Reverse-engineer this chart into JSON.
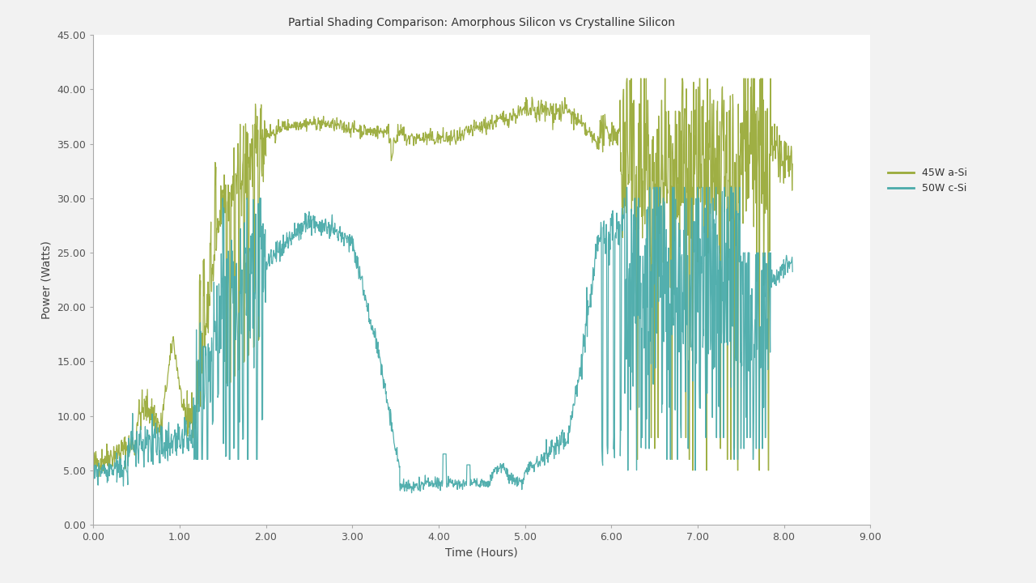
{
  "title": "Partial Shading Comparison: Amorphous Silicon vs Crystalline Silicon",
  "xlabel": "Time (Hours)",
  "ylabel": "Power (Watts)",
  "xlim": [
    0.0,
    9.0
  ],
  "ylim": [
    0.0,
    45.0
  ],
  "xticks": [
    0.0,
    1.0,
    2.0,
    3.0,
    4.0,
    5.0,
    6.0,
    7.0,
    8.0,
    9.0
  ],
  "yticks": [
    0.0,
    5.0,
    10.0,
    15.0,
    20.0,
    25.0,
    30.0,
    35.0,
    40.0,
    45.0
  ],
  "color_asi": "#9aab3a",
  "color_csi": "#4aabaa",
  "legend_labels": [
    "45W a-Si",
    "50W c-Si"
  ],
  "figure_background": "#f2f2f2",
  "plot_background": "#ffffff",
  "title_fontsize": 10,
  "axis_label_fontsize": 10,
  "tick_fontsize": 9,
  "tick_label_color": "#555555",
  "spine_color": "#aaaaaa"
}
